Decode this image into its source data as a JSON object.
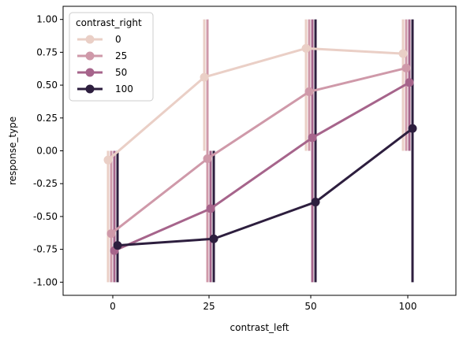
{
  "chart_data": {
    "type": "line",
    "xlabel": "contrast_left",
    "ylabel": "response_type",
    "categories": [
      "0",
      "25",
      "50",
      "100"
    ],
    "ylim": [
      -1.1,
      1.1
    ],
    "yticks": [
      "1.00",
      "0.75",
      "0.50",
      "0.25",
      "0.00",
      "-0.25",
      "-0.50",
      "-0.75",
      "-1.00"
    ],
    "ytick_values": [
      1.0,
      0.75,
      0.5,
      0.25,
      0.0,
      -0.25,
      -0.5,
      -0.75,
      -1.0
    ],
    "grid": false,
    "legend": {
      "title": "contrast_right",
      "placement": "top-left"
    },
    "series": [
      {
        "name": "0",
        "color": "#eacfc6",
        "values": [
          -0.07,
          0.56,
          0.78,
          0.74
        ],
        "err_low": [
          -1.0,
          0.0,
          0.0,
          0.0
        ],
        "err_high": [
          0.0,
          1.0,
          1.0,
          1.0
        ]
      },
      {
        "name": "25",
        "color": "#cf99a9",
        "values": [
          -0.63,
          -0.06,
          0.45,
          0.63
        ],
        "err_low": [
          -1.0,
          -1.0,
          0.0,
          0.0
        ],
        "err_high": [
          0.0,
          1.0,
          1.0,
          1.0
        ]
      },
      {
        "name": "50",
        "color": "#a6648b",
        "values": [
          -0.76,
          -0.44,
          0.1,
          0.52
        ],
        "err_low": [
          -1.0,
          -1.0,
          -1.0,
          0.0
        ],
        "err_high": [
          0.0,
          0.0,
          1.0,
          1.0
        ]
      },
      {
        "name": "100",
        "color": "#2d1e3e",
        "values": [
          -0.72,
          -0.67,
          -0.39,
          0.17
        ],
        "err_low": [
          -1.0,
          -1.0,
          -1.0,
          -1.0
        ],
        "err_high": [
          0.0,
          0.0,
          1.0,
          1.0
        ]
      }
    ]
  }
}
